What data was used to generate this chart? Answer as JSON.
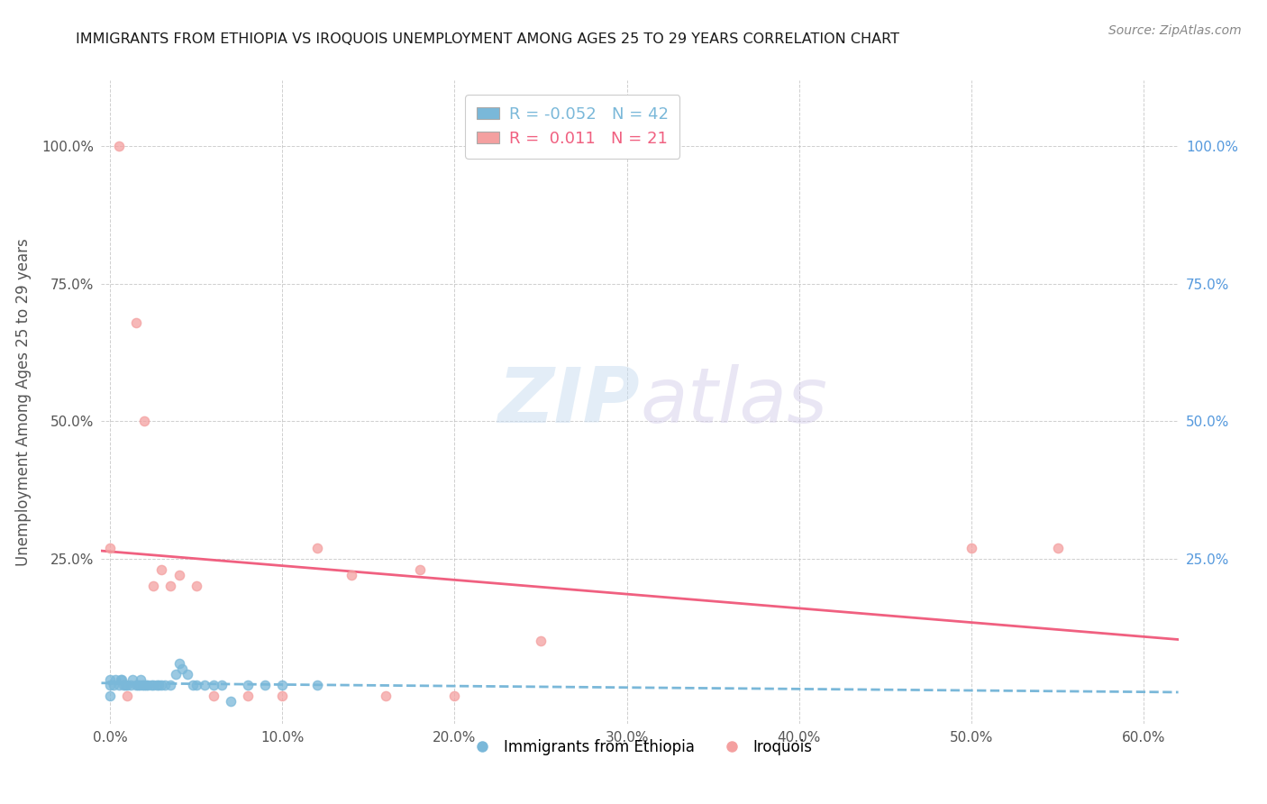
{
  "title": "IMMIGRANTS FROM ETHIOPIA VS IROQUOIS UNEMPLOYMENT AMONG AGES 25 TO 29 YEARS CORRELATION CHART",
  "source_text": "Source: ZipAtlas.com",
  "ylabel": "Unemployment Among Ages 25 to 29 years",
  "xlim": [
    -0.005,
    0.62
  ],
  "ylim": [
    -0.05,
    1.12
  ],
  "x_tick_labels": [
    "0.0%",
    "",
    "10.0%",
    "",
    "20.0%",
    "",
    "30.0%",
    "",
    "40.0%",
    "",
    "50.0%",
    "",
    "60.0%"
  ],
  "x_tick_vals": [
    0.0,
    0.05,
    0.1,
    0.15,
    0.2,
    0.25,
    0.3,
    0.35,
    0.4,
    0.45,
    0.5,
    0.55,
    0.6
  ],
  "x_major_ticks": [
    0.0,
    0.1,
    0.2,
    0.3,
    0.4,
    0.5,
    0.6
  ],
  "x_major_labels": [
    "0.0%",
    "10.0%",
    "20.0%",
    "30.0%",
    "40.0%",
    "50.0%",
    "60.0%"
  ],
  "y_tick_vals": [
    0.25,
    0.5,
    0.75,
    1.0
  ],
  "y_tick_labels": [
    "25.0%",
    "50.0%",
    "75.0%",
    "100.0%"
  ],
  "legend_ethiopia_R": "-0.052",
  "legend_ethiopia_N": "42",
  "legend_iroquois_R": "0.011",
  "legend_iroquois_N": "21",
  "color_ethiopia": "#7ab8d9",
  "color_iroquois": "#f4a0a0",
  "color_line_ethiopia": "#7ab8d9",
  "color_line_iroquois": "#f06080",
  "watermark_zip": "ZIP",
  "watermark_atlas": "atlas",
  "bg_color": "#ffffff",
  "grid_color": "#bbbbbb",
  "title_color": "#1a1a1a",
  "axis_label_color": "#555555",
  "right_axis_color": "#5599dd",
  "ethiopia_x": [
    0.0,
    0.0,
    0.0,
    0.002,
    0.003,
    0.005,
    0.006,
    0.007,
    0.008,
    0.009,
    0.01,
    0.012,
    0.013,
    0.015,
    0.016,
    0.017,
    0.018,
    0.019,
    0.02,
    0.021,
    0.022,
    0.024,
    0.025,
    0.027,
    0.028,
    0.03,
    0.032,
    0.035,
    0.038,
    0.04,
    0.042,
    0.045,
    0.048,
    0.05,
    0.055,
    0.06,
    0.065,
    0.07,
    0.08,
    0.09,
    0.1,
    0.12
  ],
  "ethiopia_y": [
    0.0,
    0.02,
    0.03,
    0.02,
    0.03,
    0.02,
    0.03,
    0.03,
    0.02,
    0.02,
    0.02,
    0.02,
    0.03,
    0.02,
    0.02,
    0.02,
    0.03,
    0.02,
    0.02,
    0.02,
    0.02,
    0.02,
    0.02,
    0.02,
    0.02,
    0.02,
    0.02,
    0.02,
    0.04,
    0.06,
    0.05,
    0.04,
    0.02,
    0.02,
    0.02,
    0.02,
    0.02,
    -0.01,
    0.02,
    0.02,
    0.02,
    0.02
  ],
  "iroquois_x": [
    0.0,
    0.005,
    0.01,
    0.015,
    0.02,
    0.025,
    0.03,
    0.035,
    0.04,
    0.05,
    0.06,
    0.08,
    0.1,
    0.12,
    0.14,
    0.16,
    0.18,
    0.2,
    0.25,
    0.5,
    0.55
  ],
  "iroquois_y": [
    0.27,
    1.0,
    0.0,
    0.68,
    0.5,
    0.2,
    0.23,
    0.2,
    0.22,
    0.2,
    0.0,
    0.0,
    0.0,
    0.27,
    0.22,
    0.0,
    0.23,
    0.0,
    0.1,
    0.27,
    0.27
  ]
}
